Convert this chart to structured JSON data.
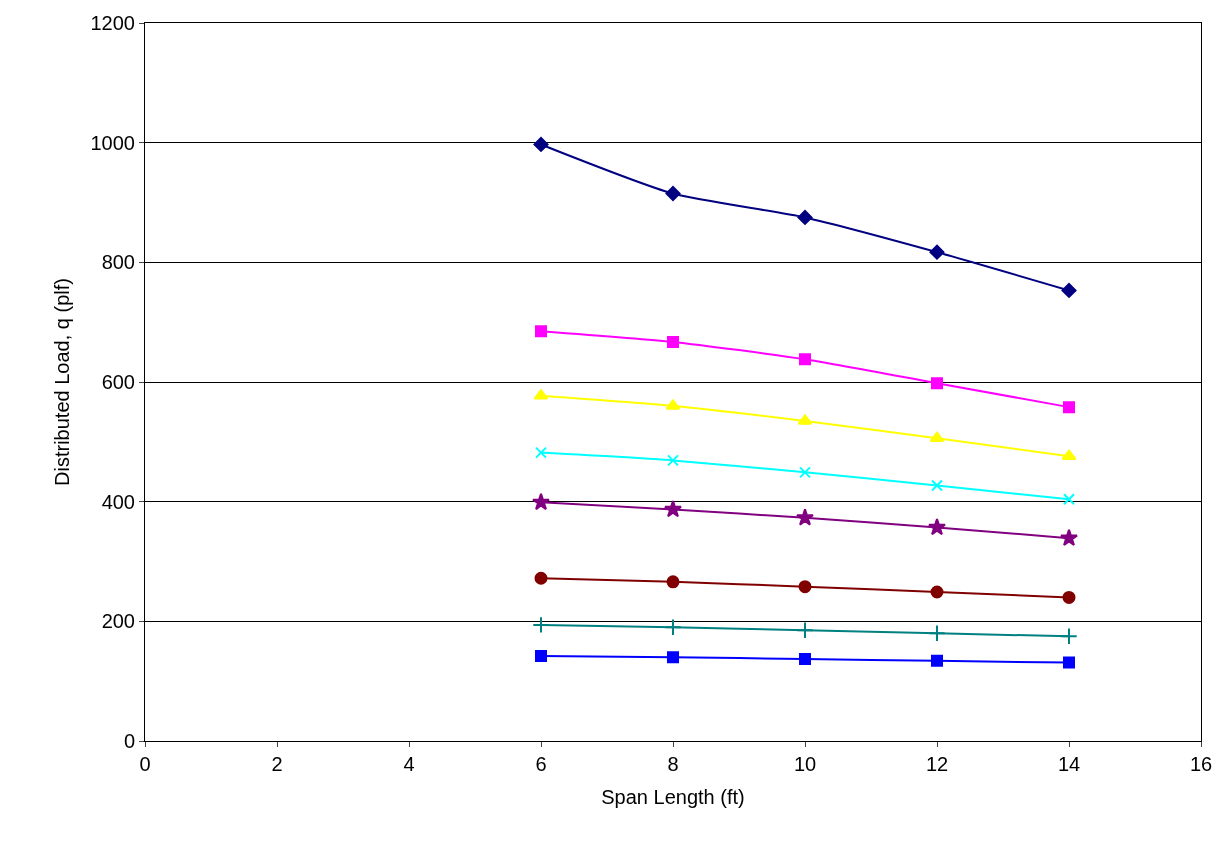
{
  "chart_data": {
    "type": "line",
    "xlabel": "Span Length (ft)",
    "ylabel": "Distributed Load, q (plf)",
    "x": [
      6,
      8,
      10,
      12,
      14
    ],
    "series": [
      {
        "color": "#000080",
        "marker": "diamond",
        "values": [
          997,
          915,
          875,
          817,
          753
        ]
      },
      {
        "color": "#ff00ff",
        "marker": "square",
        "values": [
          685,
          667,
          638,
          598,
          558
        ]
      },
      {
        "color": "#ffff00",
        "marker": "triangle",
        "values": [
          577,
          560,
          535,
          506,
          476
        ]
      },
      {
        "color": "#00ffff",
        "marker": "x",
        "values": [
          482,
          469,
          449,
          427,
          404
        ]
      },
      {
        "color": "#800080",
        "marker": "star",
        "values": [
          399,
          387,
          373,
          357,
          339
        ]
      },
      {
        "color": "#800000",
        "marker": "circle",
        "values": [
          272,
          266,
          258,
          249,
          240
        ]
      },
      {
        "color": "#008080",
        "marker": "cross",
        "values": [
          194,
          190,
          185,
          180,
          175
        ]
      },
      {
        "color": "#0000ff",
        "marker": "square",
        "values": [
          142,
          140,
          137,
          134,
          131
        ]
      }
    ],
    "xlim": [
      0,
      16
    ],
    "xticks": [
      0,
      2,
      4,
      6,
      8,
      10,
      12,
      14,
      16
    ],
    "ylim": [
      0,
      1200
    ],
    "yticks": [
      0,
      200,
      400,
      600,
      800,
      1000,
      1200
    ],
    "grid": "y",
    "line_style": "solid"
  }
}
